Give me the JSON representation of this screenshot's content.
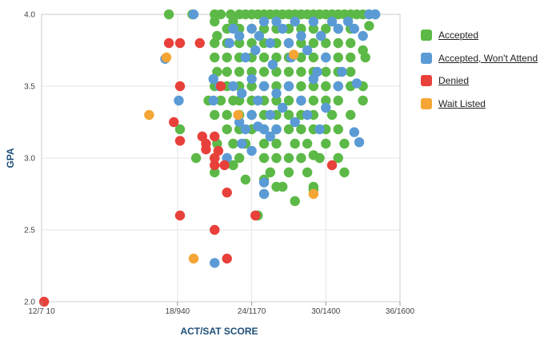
{
  "chart_data": {
    "type": "scatter",
    "title": "",
    "xlabel": "ACT/SAT SCORE",
    "ylabel": "GPA",
    "x_ticks": [
      {
        "value": 7,
        "label": "12/7 10"
      },
      {
        "value": 18,
        "label": "18/940"
      },
      {
        "value": 24,
        "label": "24/1170"
      },
      {
        "value": 30,
        "label": "30/1400"
      },
      {
        "value": 36,
        "label": "36/1600"
      }
    ],
    "y_ticks": [
      {
        "value": 2.0,
        "label": "2.0"
      },
      {
        "value": 2.5,
        "label": "2.5"
      },
      {
        "value": 3.0,
        "label": "3.0"
      },
      {
        "value": 3.5,
        "label": "3.5"
      },
      {
        "value": 4.0,
        "label": "4.0"
      }
    ],
    "xlim": [
      7,
      36
    ],
    "ylim": [
      2.0,
      4.0
    ],
    "grid": true,
    "legend_position": "right",
    "series": [
      {
        "name": "Accepted",
        "color": "#5cb947",
        "points": [
          [
            17.3,
            4.0
          ],
          [
            19.2,
            4.0
          ],
          [
            21,
            4.0
          ],
          [
            21,
            3.95
          ],
          [
            21.2,
            3.85
          ],
          [
            21.5,
            4.0
          ],
          [
            22.3,
            4.0
          ],
          [
            22.5,
            3.95
          ],
          [
            23,
            4.0
          ],
          [
            23.5,
            4.0
          ],
          [
            24,
            4.0
          ],
          [
            24.5,
            4.0
          ],
          [
            25,
            4.0
          ],
          [
            25.5,
            4.0
          ],
          [
            26,
            4.0
          ],
          [
            26.5,
            4.0
          ],
          [
            27,
            4.0
          ],
          [
            27.5,
            4.0
          ],
          [
            28,
            4.0
          ],
          [
            28.5,
            4.0
          ],
          [
            29,
            4.0
          ],
          [
            29.5,
            4.0
          ],
          [
            30,
            4.0
          ],
          [
            30.5,
            4.0
          ],
          [
            31,
            4.0
          ],
          [
            31.5,
            4.0
          ],
          [
            32,
            4.0
          ],
          [
            32.5,
            4.0
          ],
          [
            33,
            4.0
          ],
          [
            33.5,
            4.0
          ],
          [
            34,
            4.0
          ],
          [
            22,
            3.9
          ],
          [
            23,
            3.9
          ],
          [
            24,
            3.9
          ],
          [
            25,
            3.9
          ],
          [
            26,
            3.9
          ],
          [
            27,
            3.9
          ],
          [
            28,
            3.9
          ],
          [
            29,
            3.9
          ],
          [
            30,
            3.9
          ],
          [
            31,
            3.9
          ],
          [
            32,
            3.9
          ],
          [
            33.5,
            3.92
          ],
          [
            21,
            3.8
          ],
          [
            22,
            3.8
          ],
          [
            23,
            3.8
          ],
          [
            24,
            3.8
          ],
          [
            25,
            3.8
          ],
          [
            26,
            3.8
          ],
          [
            27,
            3.8
          ],
          [
            28,
            3.8
          ],
          [
            29,
            3.8
          ],
          [
            30,
            3.8
          ],
          [
            31,
            3.8
          ],
          [
            32,
            3.8
          ],
          [
            33,
            3.75
          ],
          [
            21,
            3.7
          ],
          [
            22,
            3.7
          ],
          [
            23,
            3.7
          ],
          [
            24,
            3.7
          ],
          [
            25,
            3.7
          ],
          [
            26,
            3.7
          ],
          [
            27,
            3.7
          ],
          [
            28,
            3.7
          ],
          [
            29,
            3.7
          ],
          [
            30,
            3.7
          ],
          [
            31,
            3.7
          ],
          [
            32,
            3.7
          ],
          [
            33.2,
            3.7
          ],
          [
            21.2,
            3.6
          ],
          [
            22,
            3.6
          ],
          [
            23,
            3.6
          ],
          [
            24,
            3.6
          ],
          [
            25,
            3.6
          ],
          [
            26,
            3.6
          ],
          [
            27,
            3.6
          ],
          [
            28,
            3.6
          ],
          [
            29,
            3.6
          ],
          [
            30,
            3.6
          ],
          [
            31,
            3.6
          ],
          [
            32,
            3.6
          ],
          [
            21,
            3.5
          ],
          [
            22,
            3.5
          ],
          [
            23,
            3.5
          ],
          [
            24,
            3.5
          ],
          [
            25,
            3.5
          ],
          [
            26,
            3.5
          ],
          [
            27,
            3.5
          ],
          [
            28,
            3.5
          ],
          [
            29,
            3.5
          ],
          [
            30,
            3.5
          ],
          [
            31,
            3.5
          ],
          [
            32,
            3.5
          ],
          [
            33,
            3.5
          ],
          [
            20.5,
            3.4
          ],
          [
            21.5,
            3.4
          ],
          [
            22.5,
            3.4
          ],
          [
            23,
            3.4
          ],
          [
            24,
            3.4
          ],
          [
            25,
            3.4
          ],
          [
            26,
            3.4
          ],
          [
            27,
            3.4
          ],
          [
            28,
            3.4
          ],
          [
            29,
            3.4
          ],
          [
            30,
            3.4
          ],
          [
            31,
            3.4
          ],
          [
            33,
            3.4
          ],
          [
            21,
            3.3
          ],
          [
            22,
            3.3
          ],
          [
            23,
            3.3
          ],
          [
            24,
            3.3
          ],
          [
            25,
            3.3
          ],
          [
            26,
            3.3
          ],
          [
            27,
            3.3
          ],
          [
            28,
            3.3
          ],
          [
            29,
            3.3
          ],
          [
            30.5,
            3.3
          ],
          [
            32,
            3.3
          ],
          [
            18.2,
            3.2
          ],
          [
            22,
            3.2
          ],
          [
            23,
            3.2
          ],
          [
            24,
            3.2
          ],
          [
            25,
            3.2
          ],
          [
            26,
            3.2
          ],
          [
            27,
            3.2
          ],
          [
            28,
            3.2
          ],
          [
            29,
            3.2
          ],
          [
            30,
            3.2
          ],
          [
            31,
            3.2
          ],
          [
            21.2,
            3.1
          ],
          [
            22.5,
            3.1
          ],
          [
            23.5,
            3.1
          ],
          [
            25,
            3.1
          ],
          [
            26,
            3.1
          ],
          [
            27.5,
            3.1
          ],
          [
            28.5,
            3.1
          ],
          [
            30,
            3.1
          ],
          [
            31.5,
            3.1
          ],
          [
            19.5,
            3.0
          ],
          [
            21,
            3.0
          ],
          [
            23,
            3.0
          ],
          [
            25,
            3.0
          ],
          [
            26,
            3.0
          ],
          [
            27,
            3.0
          ],
          [
            28,
            3.0
          ],
          [
            29,
            3.02
          ],
          [
            29.5,
            3.0
          ],
          [
            31,
            3.0
          ],
          [
            21,
            2.9
          ],
          [
            22.5,
            2.95
          ],
          [
            25.5,
            2.9
          ],
          [
            27,
            2.9
          ],
          [
            28.5,
            2.9
          ],
          [
            31.5,
            2.9
          ],
          [
            23.5,
            2.85
          ],
          [
            25,
            2.85
          ],
          [
            29,
            2.8
          ],
          [
            26.5,
            2.8
          ],
          [
            26,
            2.8
          ],
          [
            25,
            2.75
          ],
          [
            27.5,
            2.7
          ],
          [
            29,
            2.78
          ],
          [
            24.5,
            2.6
          ]
        ]
      },
      {
        "name": "Accepted, Won't Attend",
        "color": "#5b9bd5",
        "points": [
          [
            17,
            3.69
          ],
          [
            18.1,
            3.4
          ],
          [
            19.3,
            4.0
          ],
          [
            20.9,
            3.55
          ],
          [
            20.9,
            3.4
          ],
          [
            21,
            2.27
          ],
          [
            22,
            3.0
          ],
          [
            21.4,
            3.5
          ],
          [
            22.2,
            3.8
          ],
          [
            22.5,
            3.9
          ],
          [
            23,
            3.85
          ],
          [
            23.5,
            3.7
          ],
          [
            24,
            3.9
          ],
          [
            24.3,
            3.75
          ],
          [
            24.6,
            3.85
          ],
          [
            25,
            3.95
          ],
          [
            25.5,
            3.8
          ],
          [
            25.7,
            3.65
          ],
          [
            26,
            3.95
          ],
          [
            26.5,
            3.9
          ],
          [
            27,
            3.8
          ],
          [
            27.2,
            3.7
          ],
          [
            27.5,
            3.95
          ],
          [
            28,
            3.85
          ],
          [
            28.5,
            3.75
          ],
          [
            29,
            3.95
          ],
          [
            29.3,
            3.6
          ],
          [
            29.6,
            3.85
          ],
          [
            30,
            3.7
          ],
          [
            30.5,
            3.95
          ],
          [
            31,
            3.9
          ],
          [
            31.3,
            3.6
          ],
          [
            31.8,
            3.95
          ],
          [
            32.3,
            3.9
          ],
          [
            33,
            3.85
          ],
          [
            33.5,
            4.0
          ],
          [
            34,
            4.0
          ],
          [
            22.5,
            3.5
          ],
          [
            23.2,
            3.45
          ],
          [
            24,
            3.55
          ],
          [
            24.5,
            3.4
          ],
          [
            25,
            3.5
          ],
          [
            25.5,
            3.3
          ],
          [
            26,
            3.45
          ],
          [
            26.5,
            3.35
          ],
          [
            27,
            3.5
          ],
          [
            27.5,
            3.25
          ],
          [
            28,
            3.4
          ],
          [
            28.5,
            3.3
          ],
          [
            29,
            3.55
          ],
          [
            29.5,
            3.2
          ],
          [
            30,
            3.35
          ],
          [
            31,
            3.5
          ],
          [
            32.5,
            3.52
          ],
          [
            32.3,
            3.18
          ],
          [
            32.7,
            3.11
          ],
          [
            23,
            3.25
          ],
          [
            23.5,
            3.2
          ],
          [
            24,
            3.3
          ],
          [
            24.5,
            3.22
          ],
          [
            25,
            3.2
          ],
          [
            25.5,
            3.15
          ],
          [
            26,
            3.2
          ],
          [
            23.2,
            3.1
          ],
          [
            24,
            3.05
          ],
          [
            25,
            2.83
          ],
          [
            25,
            2.75
          ]
        ]
      },
      {
        "name": "Denied",
        "color": "#e8403a",
        "points": [
          [
            7.2,
            2.0
          ],
          [
            17.3,
            3.8
          ],
          [
            18.2,
            3.8
          ],
          [
            19.8,
            3.8
          ],
          [
            18.2,
            3.5
          ],
          [
            17.7,
            3.25
          ],
          [
            18.2,
            3.12
          ],
          [
            18.2,
            2.6
          ],
          [
            20,
            3.15
          ],
          [
            20.3,
            3.1
          ],
          [
            21,
            3.15
          ],
          [
            21,
            3.0
          ],
          [
            21.5,
            3.5
          ],
          [
            21,
            2.95
          ],
          [
            21.8,
            2.95
          ],
          [
            22,
            2.76
          ],
          [
            21,
            2.5
          ],
          [
            22,
            2.3
          ],
          [
            24.3,
            2.6
          ],
          [
            20.3,
            3.06
          ],
          [
            30.5,
            2.95
          ],
          [
            21.3,
            3.05
          ]
        ]
      },
      {
        "name": "Wait Listed",
        "color": "#f5a535",
        "points": [
          [
            15.7,
            3.3
          ],
          [
            17.1,
            3.7
          ],
          [
            19.3,
            2.3
          ],
          [
            22.9,
            3.3
          ],
          [
            27.4,
            3.72
          ],
          [
            29,
            2.75
          ]
        ]
      }
    ]
  }
}
